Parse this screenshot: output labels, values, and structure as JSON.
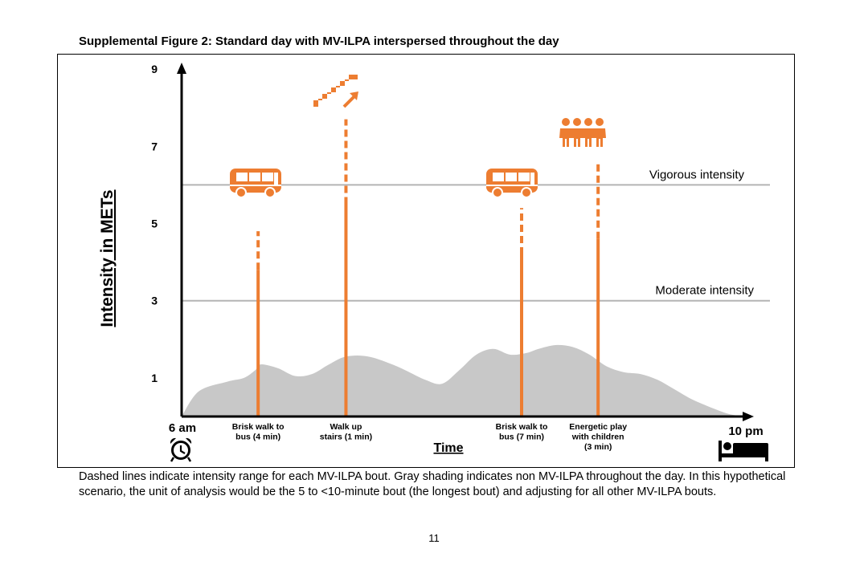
{
  "figure": {
    "title": "Supplemental Figure 2:  Standard day with MV-ILPA interspersed throughout the day",
    "caption": "Dashed lines indicate intensity range for each MV-ILPA bout. Gray shading indicates non MV-ILPA throughout the day. In this hypothetical scenario, the unit of analysis would be the 5 to <10-minute bout (the longest bout) and adjusting for all other MV-ILPA bouts.",
    "page_number": "11"
  },
  "colors": {
    "bout": "#ed7d31",
    "baseline_fill": "#c8c8c8",
    "threshold_line": "#b4b4b4",
    "axis": "#000000"
  },
  "chart_data": {
    "type": "area",
    "title": "Standard day with MV-ILPA interspersed throughout the day",
    "ylabel": "Intensity in METs",
    "xlabel": "Time",
    "ylim": [
      0,
      9
    ],
    "xlim": [
      0,
      100
    ],
    "yticks": [
      1,
      3,
      5,
      7,
      9
    ],
    "x_start_label": "6 am",
    "x_end_label": "10 pm",
    "start_icon": "alarm-clock-icon",
    "end_icon": "bed-icon",
    "thresholds": [
      {
        "name": "Vigorous intensity",
        "value": 6
      },
      {
        "name": "Moderate intensity",
        "value": 3
      }
    ],
    "baseline": {
      "name": "non MV-ILPA",
      "x": [
        0,
        3,
        8,
        11,
        13,
        14,
        17,
        20,
        23,
        26,
        29,
        33,
        38,
        43,
        46,
        49,
        52,
        55,
        58,
        61,
        63,
        66,
        69,
        72,
        75,
        78,
        81,
        84,
        87,
        90,
        94,
        97,
        100
      ],
      "y": [
        0,
        0.65,
        0.9,
        1.0,
        1.2,
        1.35,
        1.25,
        1.05,
        1.1,
        1.35,
        1.55,
        1.55,
        1.3,
        0.95,
        0.85,
        1.2,
        1.6,
        1.75,
        1.6,
        1.65,
        1.75,
        1.85,
        1.8,
        1.6,
        1.3,
        1.15,
        1.1,
        0.95,
        0.7,
        0.45,
        0.2,
        0.05,
        0
      ]
    },
    "bouts": [
      {
        "x": 13.5,
        "solid_top": 3.8,
        "max": 4.8,
        "label": [
          "Brisk walk to",
          "bus (4 min)"
        ],
        "icon": "bus-icon"
      },
      {
        "x": 29,
        "solid_top": 5.5,
        "max": 7.7,
        "label": [
          "Walk up",
          "stairs (1 min)"
        ],
        "icon": "stairs-icon"
      },
      {
        "x": 60,
        "solid_top": 4.2,
        "max": 5.4,
        "label": [
          "Brisk walk to",
          "bus (7 min)"
        ],
        "icon": "bus-icon"
      },
      {
        "x": 73.5,
        "solid_top": 4.6,
        "max": 6.6,
        "label": [
          "Energetic play",
          "with children",
          "(3 min)"
        ],
        "icon": "children-group-icon"
      }
    ]
  }
}
